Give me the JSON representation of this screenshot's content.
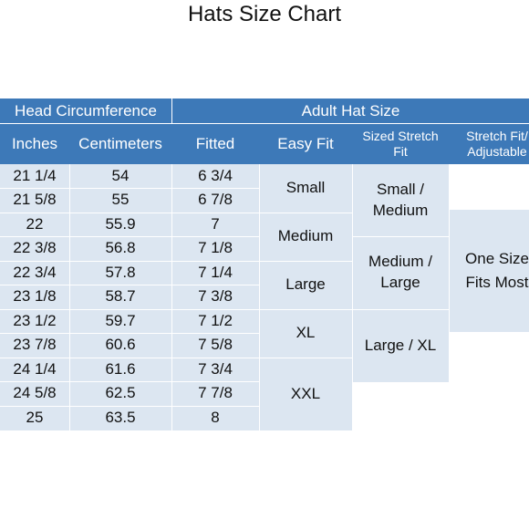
{
  "title": "Hats Size Chart",
  "headers": {
    "group_head": "Head Circumference",
    "group_adult": "Adult Hat Size",
    "inches": "Inches",
    "centimeters": "Centimeters",
    "fitted": "Fitted",
    "easy_fit": "Easy Fit",
    "sized_stretch_1": "Sized Stretch",
    "sized_stretch_2": "Fit",
    "stretch_fit_1": "Stretch Fit/",
    "stretch_fit_2": "Adjustable"
  },
  "rows": [
    {
      "inches": "21 1/4",
      "cm": "54",
      "fitted": "6 3/4"
    },
    {
      "inches": "21 5/8",
      "cm": "55",
      "fitted": "6 7/8"
    },
    {
      "inches": "22",
      "cm": "55.9",
      "fitted": "7"
    },
    {
      "inches": "22 3/8",
      "cm": "56.8",
      "fitted": "7 1/8"
    },
    {
      "inches": "22 3/4",
      "cm": "57.8",
      "fitted": "7 1/4"
    },
    {
      "inches": "23 1/8",
      "cm": "58.7",
      "fitted": "7 3/8"
    },
    {
      "inches": "23 1/2",
      "cm": "59.7",
      "fitted": "7 1/2"
    },
    {
      "inches": "23 7/8",
      "cm": "60.6",
      "fitted": "7 5/8"
    },
    {
      "inches": "24 1/4",
      "cm": "61.6",
      "fitted": "7 3/4"
    },
    {
      "inches": "24 5/8",
      "cm": "62.5",
      "fitted": "7 7/8"
    },
    {
      "inches": "25",
      "cm": "63.5",
      "fitted": "8"
    }
  ],
  "easy_fit": [
    "Small",
    "Medium",
    "Large",
    "XL",
    "XXL"
  ],
  "sized_stretch": [
    {
      "line1": "Small /",
      "line2": "Medium"
    },
    {
      "line1": "Medium /",
      "line2": "Large"
    },
    {
      "line1": "Large / XL",
      "line2": ""
    }
  ],
  "stretch_fit": {
    "line1": "One Size",
    "line2": "Fits Most"
  },
  "colors": {
    "header": "#3D79B8",
    "band": "#DCE6F1"
  }
}
